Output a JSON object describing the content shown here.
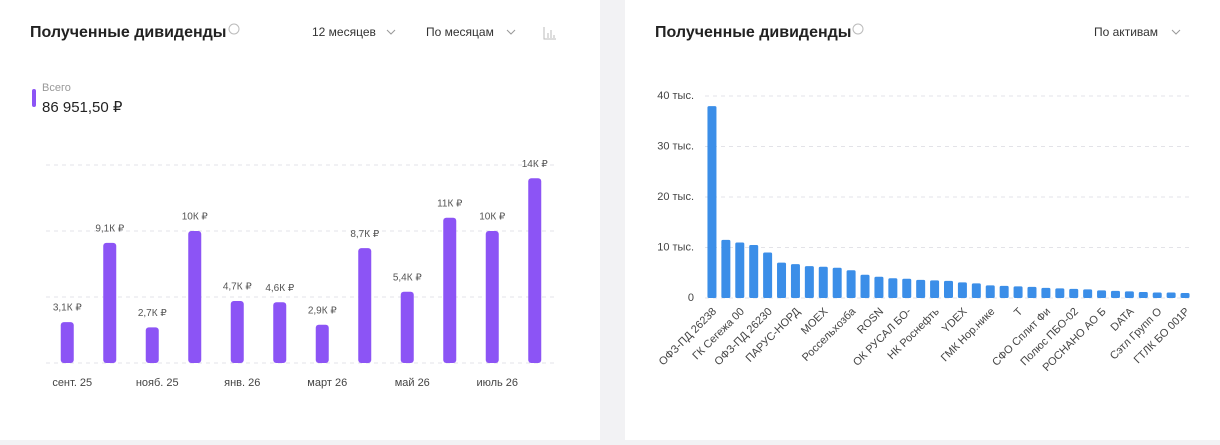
{
  "chart_data": [
    {
      "type": "bar",
      "title": "Полученные дивиденды",
      "categories": [
        "сент. 25",
        null,
        "нояб. 25",
        null,
        "янв. 26",
        null,
        "март 26",
        null,
        "май 26",
        null,
        "июль 26",
        null
      ],
      "series": [
        {
          "name": "Всего",
          "color": "#8c54f5",
          "values": [
            3.1,
            9.1,
            2.7,
            10,
            4.7,
            4.6,
            2.9,
            8.7,
            5.4,
            11,
            10,
            14
          ],
          "value_labels": [
            "3,1К ₽",
            "9,1К ₽",
            "2,7К ₽",
            "10К ₽",
            "4,7К ₽",
            "4,6К ₽",
            "2,9К ₽",
            "8,7К ₽",
            "5,4К ₽",
            "11К ₽",
            "10К ₽",
            "14К ₽"
          ]
        }
      ],
      "total": "86 951,50 ₽",
      "ylim": [
        0,
        15
      ],
      "yticks": [
        0,
        5,
        10,
        15
      ],
      "grid": true
    },
    {
      "type": "bar",
      "title": "Полученные дивиденды",
      "categories": [
        "ОФЗ-ПД 26238",
        null,
        "ГК Сегежа 00",
        null,
        "ОФЗ-ПД 26230",
        null,
        "ПАРУС-НОРД",
        null,
        "MOEX",
        null,
        "Россельхозба",
        null,
        "ROSN",
        null,
        "ОК РУСАЛ БО-",
        null,
        "НК Роснефть",
        null,
        "YDEX",
        null,
        "ГМК Нор.нике",
        null,
        "T",
        null,
        "СФО Сплит Фи",
        null,
        "Полюс ПБО-02",
        null,
        "РОСНАНО АО Б",
        null,
        "DATA",
        null,
        "Сэтл Групп О",
        null,
        "ГТЛК БО 001Р"
      ],
      "values": [
        38,
        11.5,
        11,
        10.5,
        9,
        7,
        6.7,
        6.3,
        6.2,
        6,
        5.5,
        4.6,
        4.2,
        3.9,
        3.8,
        3.6,
        3.5,
        3.4,
        3.1,
        2.9,
        2.5,
        2.4,
        2.3,
        2.2,
        2,
        1.9,
        1.8,
        1.7,
        1.5,
        1.4,
        1.3,
        1.2,
        1.1,
        1.1,
        1
      ],
      "color": "#3b8ee8",
      "ylim": [
        0,
        40
      ],
      "yticks": [
        0,
        {
          "value": 10,
          "label": "10 тыс."
        },
        {
          "value": 20,
          "label": "20 тыс."
        },
        {
          "value": 30,
          "label": "30 тыс."
        },
        {
          "value": 40,
          "label": "40 тыс."
        }
      ],
      "grid": true
    }
  ],
  "controls": {
    "period": "12 месяцев",
    "grouping": "По месяцам",
    "breakdown": "По активам"
  }
}
